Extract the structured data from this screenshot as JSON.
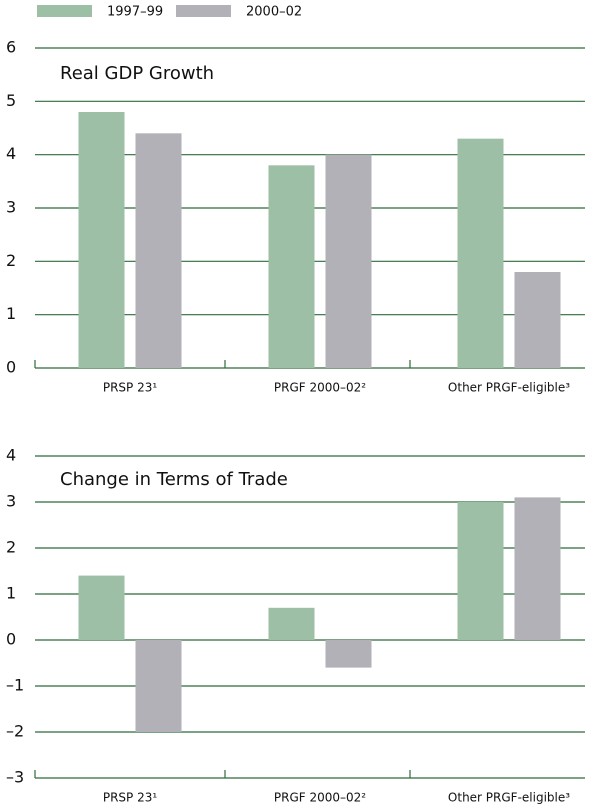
{
  "chart_data": [
    {
      "type": "bar",
      "title": "Real GDP Growth",
      "categories": [
        "PRSP 23¹",
        "PRGF 2000–02²",
        "Other PRGF-eligible³"
      ],
      "series": [
        {
          "name": "1997–99",
          "color": "#9dbfa5",
          "values": [
            4.8,
            3.8,
            4.3
          ]
        },
        {
          "name": "2000–02",
          "color": "#b1b1b7",
          "values": [
            4.4,
            4.0,
            1.8
          ]
        }
      ],
      "ylim": [
        0,
        6
      ],
      "yticks": [
        0,
        1,
        2,
        3,
        4,
        5,
        6
      ],
      "grid": true
    },
    {
      "type": "bar",
      "title": "Change in Terms of Trade",
      "categories": [
        "PRSP 23¹",
        "PRGF 2000–02²",
        "Other PRGF-eligible³"
      ],
      "series": [
        {
          "color": "#9dbfa5",
          "values": [
            1.4,
            0.7,
            3.0
          ]
        },
        {
          "color": "#b1b1b7",
          "values": [
            -2.0,
            -0.6,
            3.1
          ]
        }
      ],
      "ylim": [
        -3,
        4
      ],
      "yticks": [
        {
          "value": -3,
          "label": "–3"
        },
        {
          "value": -2,
          "label": "–2"
        },
        {
          "value": -1,
          "label": "–1"
        },
        0,
        1,
        2,
        3,
        4
      ],
      "grid": true
    }
  ]
}
